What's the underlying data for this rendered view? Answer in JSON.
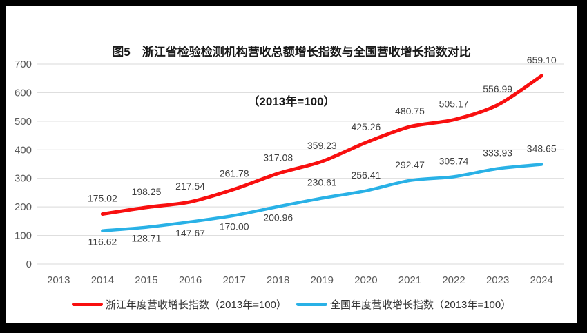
{
  "title": {
    "line1": "图5　浙江省检验检测机构营收总额增长指数与全国营收增长指数对比",
    "line2": "（2013年=100）"
  },
  "colors": {
    "frame": "#000000",
    "background": "#ffffff",
    "gridline": "#d9d9d9",
    "tick_text": "#595959",
    "data_label_text": "#404040",
    "title_text": "#1a1a1a",
    "zhejiang_red": "#f80f0f",
    "national_blue": "#29b1e6"
  },
  "chart_data": {
    "type": "line",
    "title": "图5 浙江省检验检测机构营收总额增长指数与全国营收增长指数对比（2013年=100）",
    "categories": [
      "2013",
      "2014",
      "2015",
      "2016",
      "2017",
      "2018",
      "2019",
      "2020",
      "2021",
      "2022",
      "2023",
      "2024"
    ],
    "series": [
      {
        "name": "浙江年度营收增长指数（2013年=100）",
        "color": "#f80f0f",
        "values": [
          null,
          175.02,
          198.25,
          217.54,
          261.78,
          317.08,
          359.23,
          425.26,
          480.75,
          505.17,
          556.99,
          659.1
        ],
        "label_sides": [
          null,
          "above",
          "above",
          "above",
          "above",
          "above",
          "above",
          "above",
          "above",
          "above",
          "above",
          "above"
        ]
      },
      {
        "name": "全国年度营收增长指数（2013年=100）",
        "color": "#29b1e6",
        "values": [
          null,
          116.62,
          128.71,
          147.67,
          170.0,
          200.96,
          230.61,
          256.41,
          292.47,
          305.74,
          333.93,
          348.65
        ],
        "label_sides": [
          null,
          "below",
          "below",
          "below",
          "below",
          "below",
          "above",
          "above",
          "above",
          "above",
          "above",
          "above"
        ]
      }
    ],
    "ylim": [
      0,
      700
    ],
    "yticks": [
      0,
      100,
      200,
      300,
      400,
      500,
      600,
      700
    ],
    "grid": "horizontal-only",
    "legend_position": "bottom",
    "smoothed_lines": true,
    "markers": false
  }
}
